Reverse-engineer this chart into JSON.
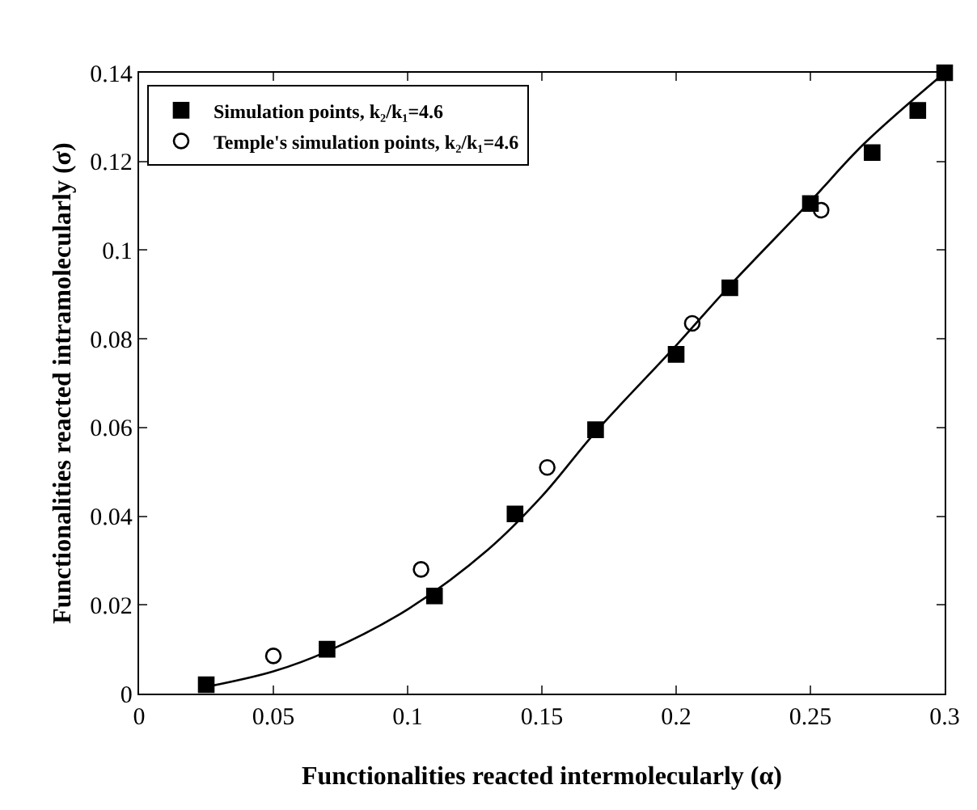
{
  "chart_data": {
    "type": "scatter",
    "xlabel": "Functionalities reacted intermolecularly (α)",
    "ylabel": "Functionalities reacted intramolecularly (σ)",
    "series": [
      {
        "name": "Simulation points, k₂/k₁=4.6",
        "marker": "square",
        "color": "#000000",
        "x": [
          0.025,
          0.07,
          0.11,
          0.14,
          0.17,
          0.2,
          0.22,
          0.25,
          0.273,
          0.29,
          0.3
        ],
        "values": [
          0.002,
          0.01,
          0.022,
          0.0405,
          0.0595,
          0.0765,
          0.0915,
          0.1105,
          0.122,
          0.1315,
          0.14
        ]
      },
      {
        "name": "Temple's simulation points, k₂/k₁=4.6",
        "marker": "circle",
        "color": "#000000",
        "x": [
          0.05,
          0.105,
          0.152,
          0.206,
          0.254
        ],
        "values": [
          0.0085,
          0.028,
          0.051,
          0.0835,
          0.109
        ]
      },
      {
        "type": "line",
        "marker": "none",
        "line_style": "solid",
        "color": "#000000",
        "x": [
          0.025,
          0.05,
          0.07,
          0.1,
          0.13,
          0.15,
          0.17,
          0.2,
          0.22,
          0.25,
          0.27,
          0.3
        ],
        "values": [
          0.0015,
          0.005,
          0.0095,
          0.019,
          0.0325,
          0.0445,
          0.059,
          0.0785,
          0.092,
          0.111,
          0.124,
          0.14
        ]
      }
    ],
    "xlim": [
      0,
      0.3
    ],
    "xticks": [
      0,
      0.05,
      0.1,
      0.15,
      0.2,
      0.25,
      0.3
    ],
    "ylim": [
      0,
      0.14
    ],
    "yticks": [
      0,
      0.02,
      0.04,
      0.06,
      0.08,
      0.1,
      0.12,
      0.14
    ],
    "grid": false,
    "legend": "top left"
  }
}
